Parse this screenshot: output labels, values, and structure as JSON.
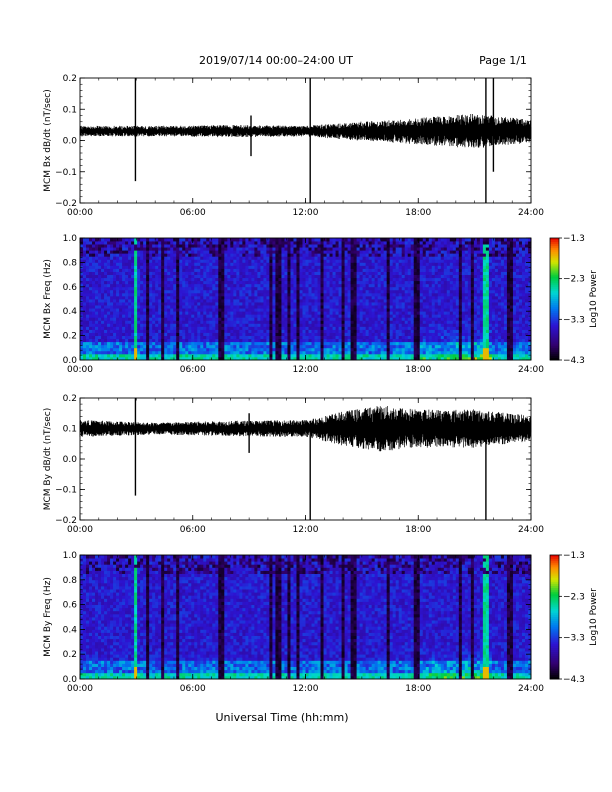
{
  "header": {
    "title": "2019/07/14  00:00–24:00 UT",
    "page": "Page 1/1"
  },
  "footer": {
    "xlabel": "Universal Time (hh:mm)"
  },
  "chart_data": [
    {
      "type": "line",
      "ylabel": "MCM Bx dB/dt (nT/sec)",
      "xlim": [
        0,
        24
      ],
      "ylim": [
        -0.2,
        0.2
      ],
      "x_ticks": [
        "00:00",
        "06:00",
        "12:00",
        "18:00",
        "24:00"
      ],
      "y_ticks": [
        "0.2",
        "0.1",
        "0.0",
        "−0.1",
        "−0.2"
      ],
      "baseline": 0.03,
      "amplitude_envelope": [
        {
          "t": 0,
          "amp": 0.012
        },
        {
          "t": 4,
          "amp": 0.012
        },
        {
          "t": 8,
          "amp": 0.014
        },
        {
          "t": 12,
          "amp": 0.012
        },
        {
          "t": 15,
          "amp": 0.022
        },
        {
          "t": 18,
          "amp": 0.03
        },
        {
          "t": 21,
          "amp": 0.04
        },
        {
          "t": 24,
          "amp": 0.026
        }
      ],
      "spikes": [
        {
          "t": 2.95,
          "min": -0.13,
          "max": 0.2
        },
        {
          "t": 9.1,
          "min": -0.05,
          "max": 0.08
        },
        {
          "t": 12.25,
          "min": -0.2,
          "max": 0.2
        },
        {
          "t": 21.6,
          "min": -0.2,
          "max": 0.2
        },
        {
          "t": 22.0,
          "min": -0.1,
          "max": 0.2
        }
      ],
      "line_color": "#000000"
    },
    {
      "type": "heatmap",
      "ylabel": "MCM Bx Freq (Hz)",
      "xlim": [
        0,
        24
      ],
      "ylim": [
        0,
        1.0
      ],
      "x_ticks": [
        "00:00",
        "06:00",
        "12:00",
        "18:00",
        "24:00"
      ],
      "y_ticks": [
        "1.0",
        "0.8",
        "0.6",
        "0.4",
        "0.2",
        "0.0"
      ],
      "colorbar": {
        "label": "Log10 Power",
        "min": -4.3,
        "max": -1.3,
        "ticks": [
          "−1.3",
          "−2.3",
          "−3.3",
          "−4.3"
        ]
      },
      "dark_bands_hours": [
        3.6,
        4.4,
        5.2,
        7.5,
        10.2,
        10.6,
        11.1,
        11.6,
        12.9,
        14.0,
        14.6,
        16.4,
        17.9,
        20.2,
        20.9,
        22.9
      ],
      "bright_lines_hours": [
        3.0,
        21.6
      ],
      "enhancement": {
        "t_start": 18.0,
        "t_end": 22.0,
        "f_max": 0.3
      }
    },
    {
      "type": "line",
      "ylabel": "MCM By dB/dt (nT/sec)",
      "xlim": [
        0,
        24
      ],
      "ylim": [
        -0.2,
        0.2
      ],
      "x_ticks": [
        "00:00",
        "06:00",
        "12:00",
        "18:00",
        "24:00"
      ],
      "y_ticks": [
        "0.2",
        "0.1",
        "0.0",
        "−0.1",
        "−0.2"
      ],
      "baseline": 0.1,
      "amplitude_envelope": [
        {
          "t": 0,
          "amp": 0.02
        },
        {
          "t": 4,
          "amp": 0.014
        },
        {
          "t": 8,
          "amp": 0.018
        },
        {
          "t": 12,
          "amp": 0.02
        },
        {
          "t": 14,
          "amp": 0.04
        },
        {
          "t": 16,
          "amp": 0.055
        },
        {
          "t": 18,
          "amp": 0.045
        },
        {
          "t": 21,
          "amp": 0.045
        },
        {
          "t": 24,
          "amp": 0.03
        }
      ],
      "spikes": [
        {
          "t": 2.95,
          "min": -0.12,
          "max": 0.2
        },
        {
          "t": 9.0,
          "min": 0.02,
          "max": 0.15
        },
        {
          "t": 12.25,
          "min": -0.2,
          "max": 0.1
        },
        {
          "t": 21.6,
          "min": -0.2,
          "max": 0.15
        }
      ],
      "line_color": "#000000"
    },
    {
      "type": "heatmap",
      "ylabel": "MCM By Freq (Hz)",
      "xlim": [
        0,
        24
      ],
      "ylim": [
        0,
        1.0
      ],
      "x_ticks": [
        "00:00",
        "06:00",
        "12:00",
        "18:00",
        "24:00"
      ],
      "y_ticks": [
        "1.0",
        "0.8",
        "0.6",
        "0.4",
        "0.2",
        "0.0"
      ],
      "colorbar": {
        "label": "Log10 Power",
        "min": -4.3,
        "max": -1.3,
        "ticks": [
          "−1.3",
          "−2.3",
          "−3.3",
          "−4.3"
        ]
      },
      "dark_bands_hours": [
        3.6,
        4.4,
        5.2,
        7.5,
        10.2,
        10.6,
        11.1,
        11.6,
        12.9,
        14.0,
        14.6,
        16.4,
        17.9,
        20.2,
        20.9,
        22.9
      ],
      "bright_lines_hours": [
        3.0,
        21.6
      ],
      "enhancement": {
        "t_start": 18.0,
        "t_end": 22.0,
        "f_max": 0.25
      }
    }
  ]
}
